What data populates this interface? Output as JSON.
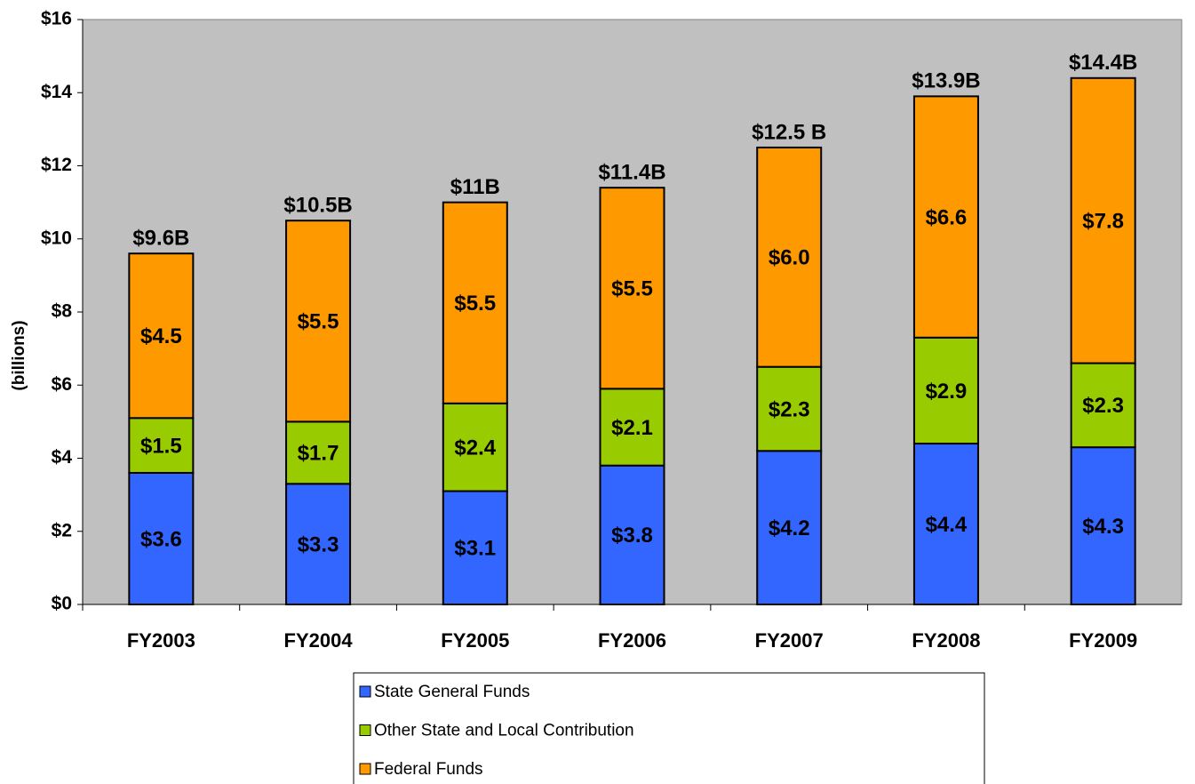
{
  "chart_data": {
    "type": "stacked_bar",
    "ylabel": "(billions)",
    "categories": [
      "FY2003",
      "FY2004",
      "FY2005",
      "FY2006",
      "FY2007",
      "FY2008",
      "FY2009"
    ],
    "series": [
      {
        "name": "State General Funds",
        "color": "#3366ff",
        "values": [
          3.6,
          3.3,
          3.1,
          3.8,
          4.2,
          4.4,
          4.3
        ],
        "value_labels": [
          "$3.6",
          "$3.3",
          "$3.1",
          "$3.8",
          "$4.2",
          "$4.4",
          "$4.3"
        ]
      },
      {
        "name": "Other State and Local Contribution",
        "color": "#99cc00",
        "values": [
          1.5,
          1.7,
          2.4,
          2.1,
          2.3,
          2.9,
          2.3
        ],
        "value_labels": [
          "$1.5",
          "$1.7",
          "$2.4",
          "$2.1",
          "$2.3",
          "$2.9",
          "$2.3"
        ]
      },
      {
        "name": "Federal Funds",
        "color": "#ff9900",
        "values": [
          4.5,
          5.5,
          5.5,
          5.5,
          6.0,
          6.6,
          7.8
        ],
        "value_labels": [
          "$4.5",
          "$5.5",
          "$5.5",
          "$5.5",
          "$6.0",
          "$6.6",
          "$7.8"
        ]
      }
    ],
    "totals": {
      "values": [
        9.6,
        10.5,
        11,
        11.4,
        12.5,
        13.9,
        14.4
      ],
      "value_labels": [
        "$9.6B",
        "$10.5B",
        "$11B",
        "$11.4B",
        "$12.5 B",
        "$13.9B",
        "$14.4B"
      ]
    },
    "ylim": [
      0,
      16
    ],
    "yticks": [
      {
        "value": 0,
        "label": "$0"
      },
      {
        "value": 2,
        "label": "$2"
      },
      {
        "value": 4,
        "label": "$4"
      },
      {
        "value": 6,
        "label": "$6"
      },
      {
        "value": 8,
        "label": "$8"
      },
      {
        "value": 10,
        "label": "$10"
      },
      {
        "value": 12,
        "label": "$12"
      },
      {
        "value": 14,
        "label": "$14"
      },
      {
        "value": 16,
        "label": "$16"
      }
    ],
    "background": "#c0c0c0",
    "legend": "bottom"
  }
}
